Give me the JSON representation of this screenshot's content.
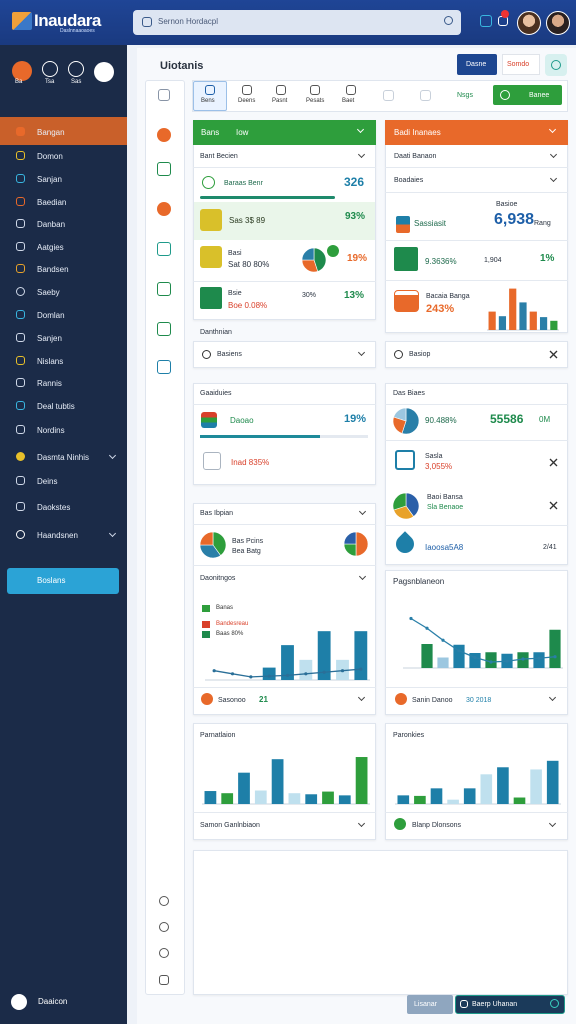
{
  "header": {
    "logo": "Inaudara",
    "logo_sub": "Daslnnaaoaoes",
    "search": "Sernon Hordacpl"
  },
  "sidebar": {
    "top_labels": [
      "Ba",
      "Tsa",
      "Sas"
    ],
    "items": [
      "Bangan",
      "Domon",
      "Sanjan",
      "Baedian",
      "Danban",
      "Aatgies",
      "Bandsen",
      "Saeby",
      "Domlan",
      "Sanjen",
      "Nislans",
      "Rannis",
      "Deal tubtis",
      "Nordins",
      "Dasmta Ninhis",
      "Deins",
      "Daokstes",
      "Haandsnen"
    ],
    "button": "Boslans",
    "footer": "Daaicon"
  },
  "main": {
    "title": "Uiotanis",
    "buttons": [
      "Dasne",
      "Somdo"
    ],
    "tabs": [
      "Bens",
      "Deens",
      "Pasnt",
      "Pesats",
      "Baet"
    ],
    "tab_link": "Nsgs",
    "tab_button": "Banee",
    "section_label": "Danthnian",
    "bottom_button": "Lisanar",
    "bottom_input": "Baerp Uhanan"
  },
  "cards": {
    "sales": {
      "header": "Bans",
      "header_note": "Iow",
      "filter": "Bant Becien",
      "rows": [
        [
          "Baraas Benr",
          "326"
        ],
        [
          "Sas 3$ 89",
          "93%"
        ],
        [
          "Basi",
          "Sat 80 80%",
          "19%"
        ],
        [
          "Bsie",
          "Boe 0.08%",
          "30%",
          "13%"
        ]
      ]
    },
    "income": {
      "header": "Badi Inanaes",
      "filters": [
        "Daati Banaon",
        "Boadaies"
      ],
      "rows": [
        [
          "Sassiasit",
          "6,938",
          "Rang"
        ],
        [
          "Basioe"
        ],
        [
          "9.3636%",
          "1,904",
          "1%"
        ],
        [
          "Bacaia Banga",
          "243%"
        ]
      ]
    },
    "collapsed": [
      "Basiens",
      "Basiop"
    ],
    "goals": {
      "title": "Gaaiduies",
      "rows": [
        [
          "Daoao",
          "19%"
        ],
        [
          "Inad 835%"
        ]
      ]
    },
    "bias": {
      "title": "Das Biaes",
      "rows": [
        [
          "90.488%",
          "55586",
          "0M"
        ],
        [
          "Sasla",
          "3,055%"
        ],
        [
          "Baoi Bansa",
          "Sla Benaoe"
        ],
        [
          "Iaoosa5A8",
          "2/41"
        ]
      ]
    },
    "trip": {
      "title": "Bas Ibpian",
      "rows": [
        [
          "Bas Pcins",
          "Bea Batg"
        ]
      ],
      "subtitle": "Daonitngos",
      "legend": [
        "Banas",
        "Bandesreau",
        "Baas 80%"
      ],
      "footer": [
        "Sasonoo",
        "21"
      ]
    },
    "plan": {
      "title": "Pagsnblaneon",
      "footer": [
        "Sanin Danoo",
        "30 2018"
      ]
    },
    "part": {
      "title": "Parnatlaion",
      "footer": "Samon Ganlnbiaon"
    },
    "park": {
      "title": "Paronkies",
      "footer": "Blanp Dlonsons"
    }
  },
  "charts": {
    "sales_pie": {
      "type": "pie",
      "values": [
        45,
        30,
        25
      ],
      "colors": [
        "#1e8a4c",
        "#e8692a",
        "#2a7fa8"
      ]
    },
    "trip_pie1": {
      "type": "pie",
      "values": [
        40,
        35,
        25
      ],
      "colors": [
        "#2e9e3c",
        "#2a7fa8",
        "#e8692a"
      ]
    },
    "trip_pie2": {
      "type": "pie",
      "values": [
        50,
        25,
        25
      ],
      "colors": [
        "#e8692a",
        "#2e9e3c",
        "#2a5fa8"
      ]
    },
    "bias_pie1": {
      "type": "pie",
      "values": [
        55,
        25,
        20
      ],
      "colors": [
        "#2a7fa8",
        "#e8692a",
        "#9cc7e0"
      ]
    },
    "bias_pie2": {
      "type": "pie",
      "values": [
        40,
        30,
        30
      ],
      "colors": [
        "#2a5fa8",
        "#e8a22a",
        "#2e9e3c"
      ]
    },
    "income_bars": {
      "type": "bar",
      "ylim": [
        0,
        5
      ],
      "values": [
        2,
        1.5,
        4.5,
        3,
        2,
        1.4,
        1
      ],
      "colors": [
        "#e8692a",
        "#2a7fa8",
        "#e8692a",
        "#2a7fa8",
        "#e8692a",
        "#2a7fa8",
        "#2e9e3c"
      ]
    },
    "trip_bars": {
      "type": "bar",
      "ylim": [
        0,
        8
      ],
      "values": [
        0,
        0,
        0,
        1.6,
        4.5,
        2.6,
        6.3,
        2.6,
        6.3
      ],
      "colors": [
        "#1e7fa8",
        "#1e7fa8",
        "#1e7fa8",
        "#1e7fa8",
        "#1e7fa8",
        "#bfe0ee",
        "#1e7fa8",
        "#bfe0ee",
        "#1e7fa8"
      ],
      "line": [
        1.2,
        0.8,
        0.4,
        0.5,
        0.6,
        0.8,
        1,
        1.2,
        1.4
      ],
      "line_color": "#2a6f98"
    },
    "plan_bars": {
      "type": "bar",
      "ylim": [
        0,
        8
      ],
      "values": [
        0,
        3.2,
        1.4,
        3.1,
        2,
        2.1,
        1.9,
        2.1,
        2.1,
        5.1
      ],
      "colors": [
        "#1e8a4c",
        "#1e8a4c",
        "#9cc7e0",
        "#1e7fa8",
        "#1e7fa8",
        "#1e8a4c",
        "#1e7fa8",
        "#1e8a4c",
        "#1e7fa8",
        "#1e8a4c"
      ],
      "line": [
        6.6,
        5.3,
        3.7,
        2.3,
        1.4,
        0.8,
        0.9,
        1.2,
        1.3,
        1.5
      ],
      "line_color": "#2a7fa8"
    },
    "part_bars": {
      "type": "bar",
      "ylim": [
        0,
        10
      ],
      "values": [
        2.4,
        2,
        5.8,
        2.5,
        8.3,
        2,
        1.8,
        2.3,
        1.6,
        8.7
      ],
      "colors": [
        "#1e7fa8",
        "#2e9e3c",
        "#1e7fa8",
        "#bfe0ee",
        "#1e7fa8",
        "#bfe0ee",
        "#1e7fa8",
        "#2e9e3c",
        "#1e7fa8",
        "#2e9e3c"
      ]
    },
    "park_bars": {
      "type": "bar",
      "ylim": [
        0,
        10
      ],
      "values": [
        1.6,
        1.5,
        2.9,
        0.8,
        2.9,
        5.5,
        6.8,
        1.2,
        6.4,
        8
      ],
      "colors": [
        "#1e7fa8",
        "#2e9e3c",
        "#1e7fa8",
        "#bfe0ee",
        "#1e7fa8",
        "#bfe0ee",
        "#1e7fa8",
        "#2e9e3c",
        "#bfe0ee",
        "#1e7fa8"
      ]
    }
  }
}
